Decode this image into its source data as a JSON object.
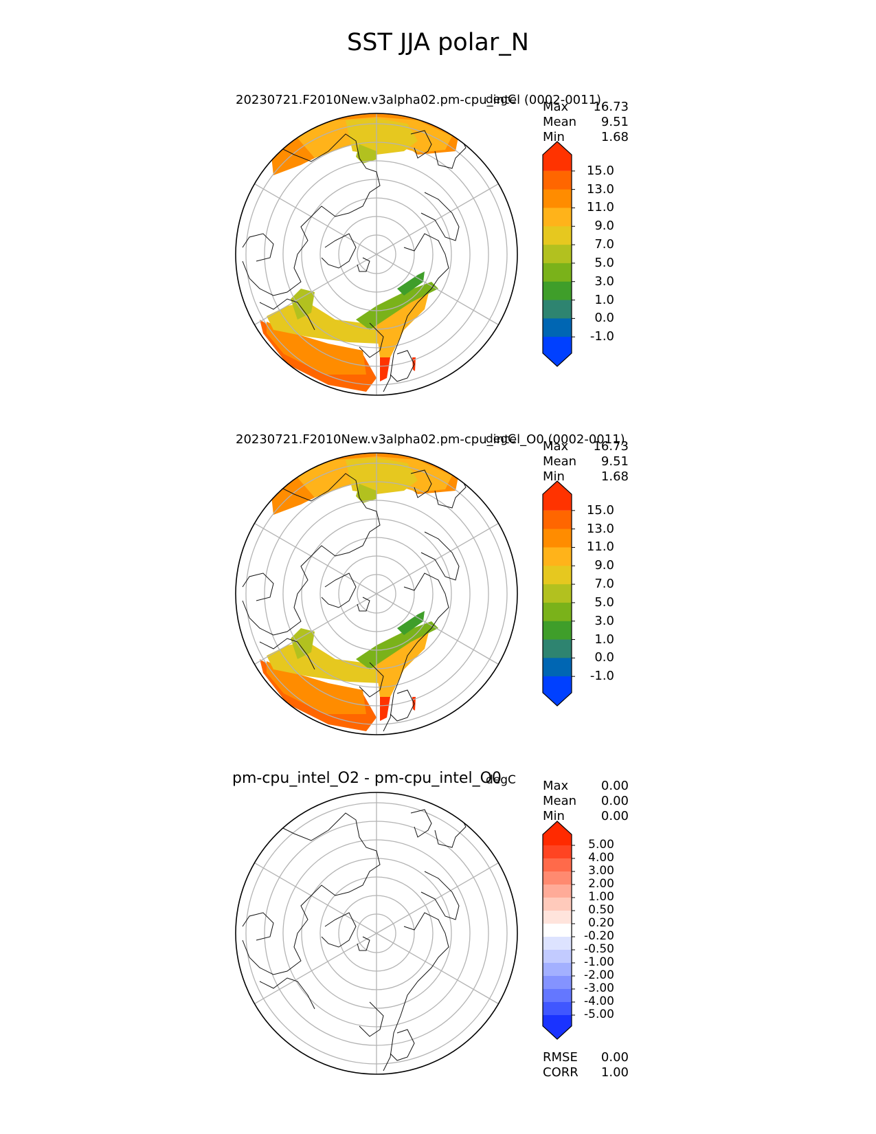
{
  "title": "SST JJA polar_N",
  "panels": [
    {
      "title": "20230721.F2010New.v3alpha02.pm-cpu_intel (0002-0011)",
      "units": "degC",
      "stats": [
        {
          "label": "Max",
          "value": "16.73"
        },
        {
          "label": "Mean",
          "value": "9.51"
        },
        {
          "label": "Min",
          "value": "1.68"
        }
      ],
      "colorbar": {
        "ticks": [
          "15.0",
          "13.0",
          "11.0",
          "9.0",
          "7.0",
          "5.0",
          "3.0",
          "1.0",
          "0.0",
          "-1.0"
        ],
        "colors": [
          "#ff3300",
          "#ff6600",
          "#ff8c00",
          "#ffb31a",
          "#e6c81f",
          "#b2c11f",
          "#7ab21a",
          "#3f9e2a",
          "#2e8470",
          "#0066b3",
          "#0040ff"
        ]
      }
    },
    {
      "title": "20230721.F2010New.v3alpha02.pm-cpu_intel_O0 (0002-0011)",
      "units": "degC",
      "stats": [
        {
          "label": "Max",
          "value": "16.73"
        },
        {
          "label": "Mean",
          "value": "9.51"
        },
        {
          "label": "Min",
          "value": "1.68"
        }
      ],
      "colorbar": {
        "ticks": [
          "15.0",
          "13.0",
          "11.0",
          "9.0",
          "7.0",
          "5.0",
          "3.0",
          "1.0",
          "0.0",
          "-1.0"
        ],
        "colors": [
          "#ff3300",
          "#ff6600",
          "#ff8c00",
          "#ffb31a",
          "#e6c81f",
          "#b2c11f",
          "#7ab21a",
          "#3f9e2a",
          "#2e8470",
          "#0066b3",
          "#0040ff"
        ]
      }
    },
    {
      "title": "pm-cpu_intel_O2 - pm-cpu_intel_O0",
      "units": "degC",
      "stats": [
        {
          "label": "Max",
          "value": "0.00"
        },
        {
          "label": "Mean",
          "value": "0.00"
        },
        {
          "label": "Min",
          "value": "0.00"
        }
      ],
      "colorbar": {
        "ticks": [
          "5.00",
          "4.00",
          "3.00",
          "2.00",
          "1.00",
          "0.50",
          "0.20",
          "-0.20",
          "-0.50",
          "-1.00",
          "-2.00",
          "-3.00",
          "-4.00",
          "-5.00"
        ],
        "colors": [
          "#ff2a00",
          "#ff4422",
          "#ff6a4a",
          "#ff8a70",
          "#ffab98",
          "#ffcabb",
          "#ffe4dc",
          "#ffffff",
          "#dde3ff",
          "#c2cbff",
          "#a3b0ff",
          "#8493ff",
          "#6477ff",
          "#4057ff",
          "#1a33ff"
        ]
      },
      "extra_stats": [
        {
          "label": "RMSE",
          "value": "0.00"
        },
        {
          "label": "CORR",
          "value": "1.00"
        }
      ]
    }
  ]
}
